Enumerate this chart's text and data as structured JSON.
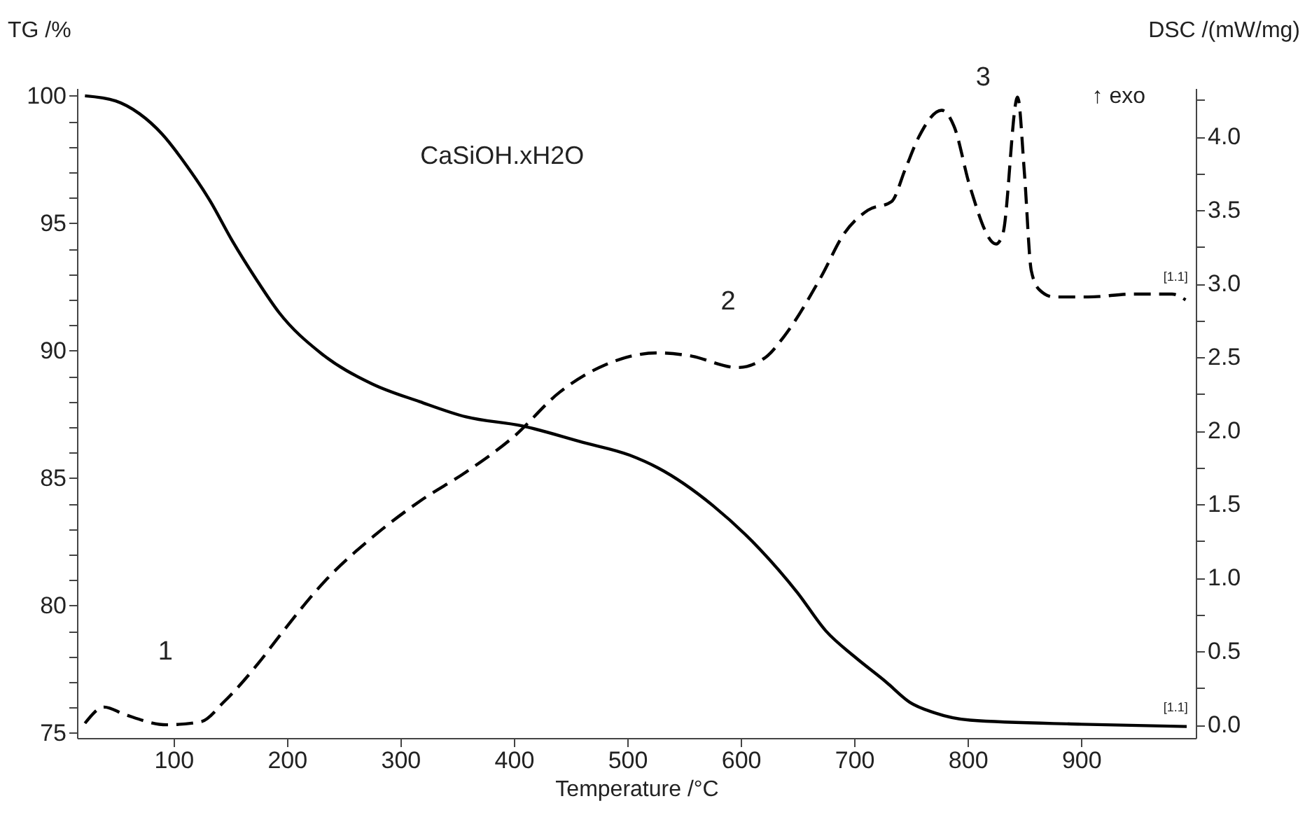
{
  "chart_data": {
    "type": "line",
    "xlabel": "Temperature /°C",
    "ylabel": "TG /%",
    "y2label": "DSC /(mW/mg)",
    "annotations": [
      "CaSiOH.xH2O",
      "↑ exo",
      "1",
      "2",
      "3",
      "[1.1]",
      "[1.1]"
    ],
    "x": [
      22,
      49,
      70,
      90,
      111,
      132,
      152,
      173,
      193,
      230,
      275,
      317,
      358,
      407,
      461,
      502,
      527,
      576,
      617,
      650,
      675,
      700,
      728,
      749,
      770,
      802,
      900,
      993
    ],
    "series": [
      {
        "color": "#000000",
        "line_style": "solid",
        "values": [
          100,
          99.8,
          99.3,
          98.5,
          97.3,
          95.9,
          94.3,
          92.8,
          91.5,
          89.9,
          88.7,
          88.0,
          87.4,
          87.05,
          86.4,
          85.9,
          85.4,
          83.9,
          82.2,
          80.5,
          79.0,
          78.0,
          77.0,
          76.2,
          75.8,
          75.5,
          75.34,
          75.25
        ]
      },
      {
        "color": "#000000",
        "line_style": "dashed",
        "axis": "y2",
        "x": [
          22,
          39,
          57,
          94,
          124,
          145,
          175,
          194,
          235,
          276,
          317,
          358,
          400,
          440,
          481,
          527,
          555,
          597,
          622,
          638,
          671,
          691,
          712,
          733,
          745,
          757,
          777,
          788,
          802,
          825,
          831,
          844,
          850,
          856,
          863,
          876,
          906,
          946,
          980,
          992
        ],
        "values": [
          0.01,
          0.12,
          0.07,
          0.0,
          0.02,
          0.16,
          0.42,
          0.61,
          0.99,
          1.28,
          1.52,
          1.72,
          1.96,
          2.26,
          2.45,
          2.53,
          2.51,
          2.43,
          2.5,
          2.64,
          3.05,
          3.34,
          3.5,
          3.56,
          3.78,
          4.0,
          4.18,
          4.07,
          3.66,
          3.27,
          3.34,
          4.27,
          3.75,
          3.09,
          2.96,
          2.91,
          2.91,
          2.93,
          2.93,
          2.89
        ]
      }
    ],
    "xlim": [
      15,
      1001
    ],
    "xticks": [
      100,
      200,
      300,
      400,
      500,
      600,
      700,
      800,
      900
    ],
    "ylim": [
      74.8,
      100.3
    ],
    "yticks": [
      75,
      {
        "value": 76,
        "label": null
      },
      {
        "value": 77,
        "label": null
      },
      {
        "value": 78,
        "label": null
      },
      {
        "value": 79,
        "label": null
      },
      80,
      {
        "value": 81,
        "label": null
      },
      {
        "value": 82,
        "label": null
      },
      {
        "value": 83,
        "label": null
      },
      {
        "value": 84,
        "label": null
      },
      85,
      {
        "value": 86,
        "label": null
      },
      {
        "value": 87,
        "label": null
      },
      {
        "value": 88,
        "label": null
      },
      {
        "value": 89,
        "label": null
      },
      90,
      {
        "value": 91,
        "label": null
      },
      {
        "value": 92,
        "label": null
      },
      {
        "value": 93,
        "label": null
      },
      {
        "value": 94,
        "label": null
      },
      95,
      {
        "value": 96,
        "label": null
      },
      {
        "value": 97,
        "label": null
      },
      {
        "value": 98,
        "label": null
      },
      {
        "value": 99,
        "label": null
      },
      100
    ],
    "y2lim": [
      -0.09,
      4.33
    ],
    "y2ticks": [
      {
        "value": 0,
        "label": "0.0"
      },
      {
        "value": 0.25,
        "label": null
      },
      0.5,
      {
        "value": 0.75,
        "label": null
      },
      {
        "value": 1,
        "label": "1.0"
      },
      {
        "value": 1.25,
        "label": null
      },
      1.5,
      {
        "value": 1.75,
        "label": null
      },
      {
        "value": 2,
        "label": "2.0"
      },
      {
        "value": 2.25,
        "label": null
      },
      2.5,
      {
        "value": 2.75,
        "label": null
      },
      {
        "value": 3,
        "label": "3.0"
      },
      {
        "value": 3.25,
        "label": null
      },
      3.5,
      {
        "value": 3.75,
        "label": null
      },
      {
        "value": 4,
        "label": "4.0"
      },
      {
        "value": 4.25,
        "label": null
      }
    ],
    "grid": false
  }
}
